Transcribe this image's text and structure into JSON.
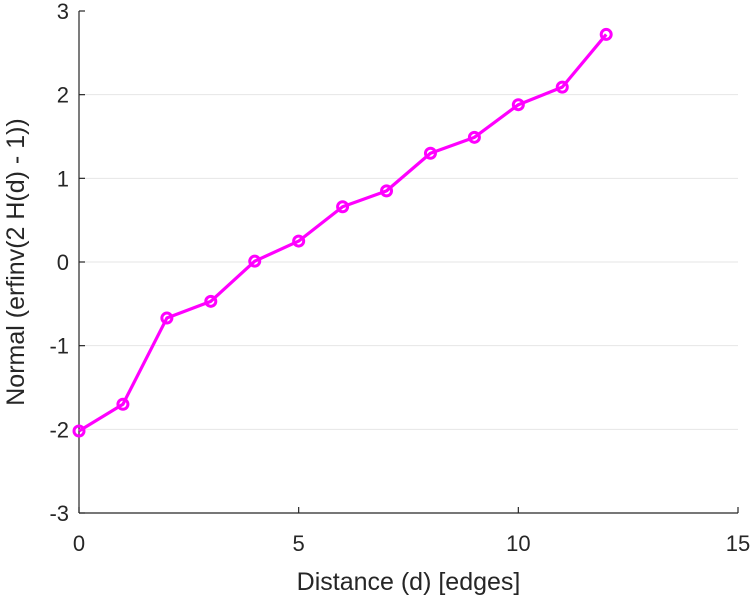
{
  "chart_data": {
    "type": "line",
    "title": "",
    "xlabel": "Distance (d) [edges]",
    "ylabel": "Normal (erfinv(2 H(d) - 1))",
    "xlim": [
      0,
      15
    ],
    "ylim": [
      -3,
      3
    ],
    "xticks": [
      0,
      5,
      10,
      15
    ],
    "yticks": [
      -3,
      -2,
      -1,
      0,
      1,
      2,
      3
    ],
    "grid": "horizontal",
    "series": [
      {
        "color": "#ff00ff",
        "marker": "circle",
        "x": [
          0,
          1,
          2,
          3,
          4,
          5,
          6,
          7,
          8,
          9,
          10,
          11,
          12
        ],
        "y": [
          -2.02,
          -1.7,
          -0.67,
          -0.47,
          0.01,
          0.25,
          0.66,
          0.85,
          1.3,
          1.49,
          1.88,
          2.09,
          2.72
        ]
      }
    ]
  }
}
